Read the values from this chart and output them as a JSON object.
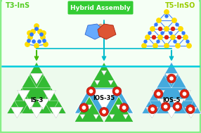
{
  "bg_outer": "#c8f0c8",
  "bg_top": "#f0fff0",
  "bg_bottom": "#e8f8e8",
  "t3_label": "T3-InS",
  "t5_label": "T5-InSO",
  "hybrid_label": "Hybrid Assembly",
  "hybrid_bg": "#33cc33",
  "is3_label": "IS-3",
  "ios35_label": "IOS-35",
  "ios5_label": "IOS-5",
  "green": "#33bb33",
  "blue": "#44aadd",
  "arrow_green": "#44bb00",
  "arrow_cyan": "#00bbcc",
  "divider_cyan": "#00ccdd",
  "label_green": "#55cc22",
  "label_yellow_green": "#99cc00",
  "white": "#ffffff",
  "yellow": "#ffdd00",
  "blue_atom": "#3377ff",
  "red_atom": "#dd2211",
  "skin": "#e8a070",
  "skin_dark": "#cc8855"
}
